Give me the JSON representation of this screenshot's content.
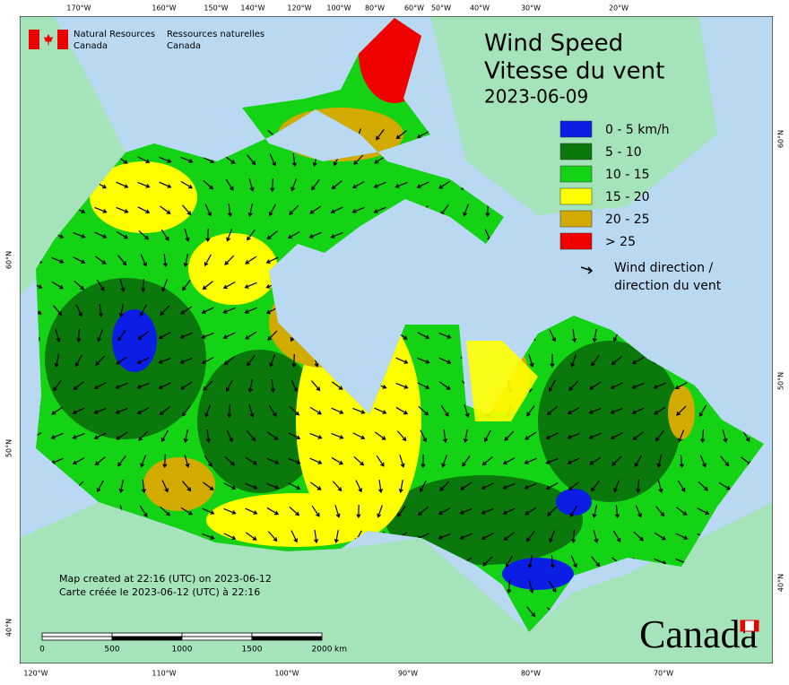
{
  "header": {
    "english": [
      "Natural Resources",
      "Canada"
    ],
    "french": [
      "Ressources naturelles",
      "Canada"
    ]
  },
  "title": {
    "english": "Wind Speed",
    "french": "Vitesse du vent",
    "date": "2023-06-09"
  },
  "legend": {
    "items": [
      {
        "label": "0 - 5 km/h",
        "color": "#0a1ee6"
      },
      {
        "label": "5 - 10",
        "color": "#0a780a"
      },
      {
        "label": "10 - 15",
        "color": "#14d214"
      },
      {
        "label": "15 - 20",
        "color": "#ffff00"
      },
      {
        "label": "20 - 25",
        "color": "#d2aa00"
      },
      {
        "label": "> 25",
        "color": "#f00000"
      }
    ],
    "direction": [
      "Wind direction /",
      "direction du vent"
    ]
  },
  "graticule": {
    "top": [
      "170°W",
      "160°W",
      "150°W",
      "140°W",
      "120°W",
      "100°W",
      "80°W",
      "60°W",
      "50°W",
      "40°W",
      "30°W",
      "20°W"
    ],
    "bottom": [
      "120°W",
      "110°W",
      "100°W",
      "90°W",
      "80°W",
      "70°W"
    ],
    "left": [
      "60°N",
      "50°N",
      "40°N"
    ],
    "right": [
      "60°N",
      "50°N",
      "40°N"
    ]
  },
  "footer": {
    "created": [
      "Map created at 22:16 (UTC) on 2023-06-12",
      "Carte créée le 2023-06-12 (UTC) à 22:16"
    ],
    "scale": {
      "ticks": [
        "0",
        "500",
        "1000",
        "1500",
        "2000"
      ],
      "unit": "km"
    },
    "wordmark": "Canada"
  }
}
